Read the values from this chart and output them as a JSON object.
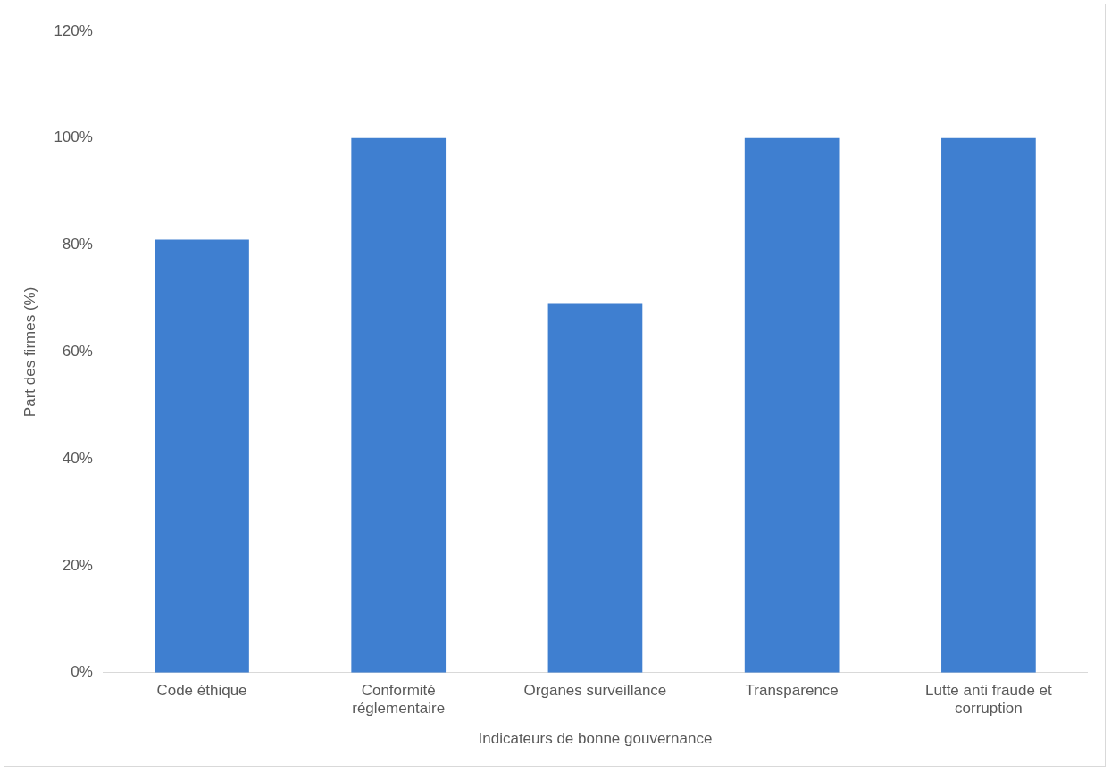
{
  "chart_data": {
    "type": "bar",
    "xlabel": "Indicateurs de bonne gouvernance",
    "ylabel": "Part des firmes (%)",
    "categories": [
      "Code éthique",
      "Conformité réglementaire",
      "Organes surveillance",
      "Transparence",
      "Lutte anti fraude et corruption"
    ],
    "values": [
      81,
      100,
      69,
      100,
      100
    ],
    "color": "#3f7fd0",
    "ylim": [
      0,
      120
    ],
    "yticks": [
      {
        "value": 0,
        "label": "0%"
      },
      {
        "value": 20,
        "label": "20%"
      },
      {
        "value": 40,
        "label": "40%"
      },
      {
        "value": 60,
        "label": "60%"
      },
      {
        "value": 80,
        "label": "80%"
      },
      {
        "value": 100,
        "label": "100%"
      },
      {
        "value": 120,
        "label": "120%"
      }
    ],
    "grid": false,
    "legend": false
  }
}
